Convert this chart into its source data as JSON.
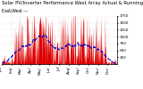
{
  "title1": "Solar PV/Inverter Performance West Array Actual & Running Average Power Output",
  "title2": "East/West ---",
  "bg_color": "#ffffff",
  "plot_bg": "#ffffff",
  "grid_color": "#aaaaaa",
  "bar_color": "#dd0000",
  "avg_color": "#0000cc",
  "ylim": [
    0,
    1750
  ],
  "yticks": [
    250,
    500,
    750,
    1000,
    1250,
    1500,
    1750
  ],
  "title_fontsize": 3.8,
  "label_fontsize": 3.0,
  "figsize": [
    1.6,
    1.0
  ],
  "dpi": 100
}
